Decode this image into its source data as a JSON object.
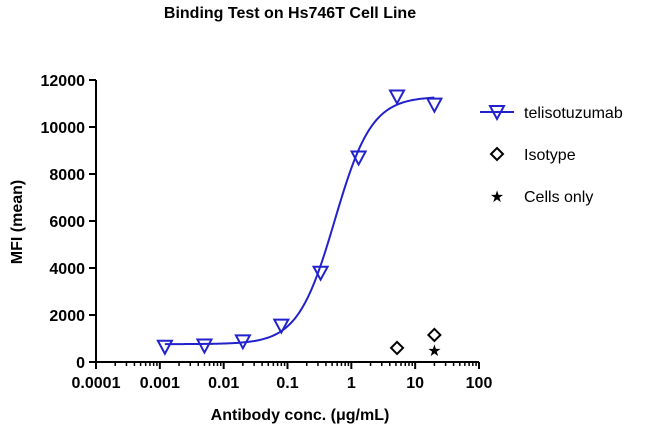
{
  "chart_data": {
    "type": "scatter",
    "title": "Binding Test on Hs746T  Cell Line",
    "xlabel": "Antibody conc. (μg/mL)",
    "ylabel": "MFI (mean)",
    "x_scale": "log",
    "xlim": [
      0.0001,
      100
    ],
    "ylim": [
      0,
      12000
    ],
    "x_ticks": [
      "0.0001",
      "0.001",
      "0.01",
      "0.1",
      "1",
      "10",
      "100"
    ],
    "y_ticks": [
      "0",
      "2000",
      "4000",
      "6000",
      "8000",
      "10000",
      "12000"
    ],
    "grid": false,
    "legend_position": "right",
    "series": [
      {
        "name": "telisotuzumab",
        "marker": "triangle-down",
        "color": "#2222cc",
        "fit_curve": true,
        "points": [
          {
            "x": 0.0012,
            "y": 650
          },
          {
            "x": 0.005,
            "y": 700
          },
          {
            "x": 0.02,
            "y": 880
          },
          {
            "x": 0.08,
            "y": 1550
          },
          {
            "x": 0.33,
            "y": 3800
          },
          {
            "x": 1.3,
            "y": 8700
          },
          {
            "x": 5.2,
            "y": 11300
          },
          {
            "x": 20,
            "y": 10950
          }
        ],
        "fit": {
          "bottom": 760,
          "top": 11300,
          "ec50": 0.55,
          "hill": 1.5
        }
      },
      {
        "name": "Isotype",
        "marker": "diamond",
        "color": "#000000",
        "points": [
          {
            "x": 5.2,
            "y": 600
          },
          {
            "x": 20,
            "y": 1150
          }
        ]
      },
      {
        "name": "Cells only",
        "marker": "star",
        "color": "#000000",
        "points": [
          {
            "x": 20,
            "y": 520
          }
        ]
      }
    ]
  }
}
